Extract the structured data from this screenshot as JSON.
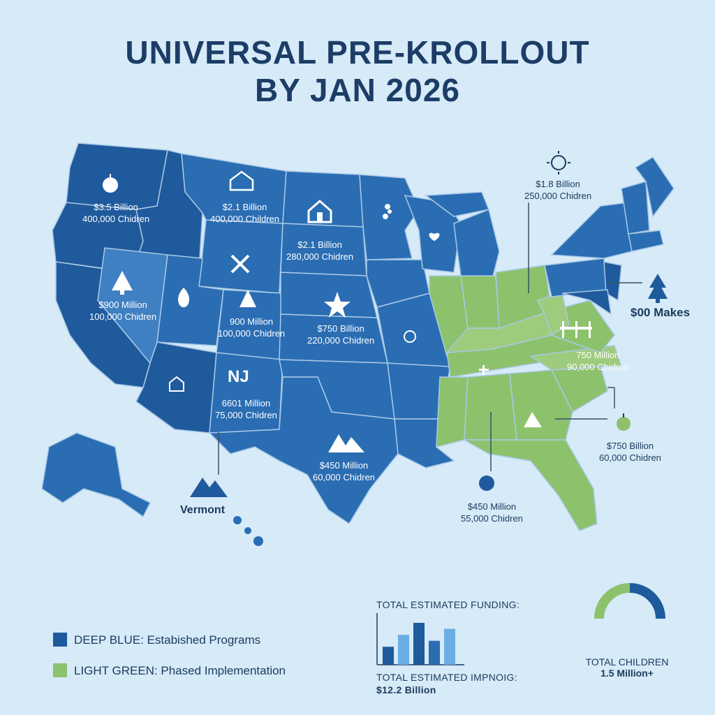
{
  "title": {
    "line1": "UNIVERSAL PRE-KROLLOUT",
    "line2": "BY JAN 2026"
  },
  "map_labels": [
    {
      "amount": "$3.5 Billion",
      "children": "400,000 Chidren"
    },
    {
      "amount": "$2.1 Billion",
      "children": "400,000 Children"
    },
    {
      "amount": "$2.1 Billion",
      "children": "280,000 Chidren"
    },
    {
      "amount": "$900 Million",
      "children": "100,000 Chidren"
    },
    {
      "amount": "900 Million",
      "children": "100,000 Chidren"
    },
    {
      "amount": "$750 Billion",
      "children": "220,000 Chidren"
    },
    {
      "amount": "6601 Million",
      "children": "75,000 Chidren"
    },
    {
      "amount": "$450 Million",
      "children": "60,000 Chidren"
    },
    {
      "amount": "750 Million",
      "children": "90,000 Chidren"
    }
  ],
  "nj_label": "NJ",
  "callouts": {
    "northeast": {
      "amount": "$1.8 Billion",
      "children": "250,000 Chidren"
    },
    "east": "$00 Makes",
    "southeast": {
      "amount": "$750 Billion",
      "children": "60,000 Chidren"
    },
    "south": {
      "amount": "$450 Million",
      "children": "55,000 Chidren"
    },
    "west": "Vermont"
  },
  "legend": {
    "blue": {
      "key": "DEEP BLUE:",
      "text": "Estabished Programs",
      "color": "#1f5a9c"
    },
    "green": {
      "key": "LIGHT GREEN:",
      "text": "Phased Implementation",
      "color": "#8dc26d"
    }
  },
  "funding": {
    "header": "TOTAL ESTIMATED FUNDING:",
    "subheader": "TOTAL ESTIMATED IMPNOIG:",
    "total": "$12.2 Billion",
    "bars": [
      {
        "value": 3,
        "color": "#1f5a9c"
      },
      {
        "value": 5,
        "color": "#6aaee4"
      },
      {
        "value": 7,
        "color": "#1f5a9c"
      },
      {
        "value": 4,
        "color": "#2a6db3"
      },
      {
        "value": 6,
        "color": "#6aaee4"
      }
    ]
  },
  "children_total": {
    "label": "TOTAL CHILDREN",
    "value": "1.5 Million+",
    "gauge": {
      "blue_fraction": 0.5,
      "blue_color": "#1f5a9c",
      "green_color": "#8dc26d"
    }
  }
}
